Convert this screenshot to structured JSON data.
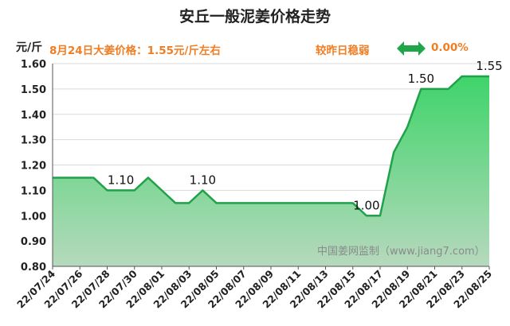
{
  "title": "安丘一般泥姜价格走势",
  "unit": "元/斤",
  "price_note": "8月24日大姜价格：1.55元/斤左右",
  "trend_text": "较昨日稳弱",
  "trend_value": "0.00%",
  "watermark": "中国姜网监制（www.jiang7.com）",
  "colors": {
    "line": "#21a14a",
    "fill_top": "#3fd46a",
    "fill_bottom": "#b6d9bd",
    "accent": "#f07d22",
    "arrow": "#1fa64a"
  },
  "icons": {
    "trend": "left-right-arrow-icon"
  },
  "chart_data": {
    "type": "area",
    "title": "安丘一般泥姜价格走势",
    "ylabel": "元/斤",
    "ylim": [
      0.8,
      1.6
    ],
    "yticks": [
      "0.80",
      "0.90",
      "1.00",
      "1.10",
      "1.20",
      "1.30",
      "1.40",
      "1.50",
      "1.60"
    ],
    "xtick_labels": [
      "22/07/24",
      "22/07/26",
      "22/07/28",
      "22/07/30",
      "22/08/01",
      "22/08/03",
      "22/08/05",
      "22/08/07",
      "22/08/09",
      "22/08/11",
      "22/08/13",
      "22/08/15",
      "22/08/17",
      "22/08/19",
      "22/08/21",
      "22/08/23",
      "22/08/25"
    ],
    "grid": true,
    "series": [
      {
        "values": [
          1.15,
          1.15,
          1.15,
          1.15,
          1.1,
          1.1,
          1.1,
          1.15,
          1.1,
          1.05,
          1.05,
          1.1,
          1.05,
          1.05,
          1.05,
          1.05,
          1.05,
          1.05,
          1.05,
          1.05,
          1.05,
          1.05,
          1.05,
          1.0,
          1.0,
          1.25,
          1.35,
          1.5,
          1.5,
          1.5,
          1.55,
          1.55,
          1.55
        ]
      }
    ],
    "data_labels": [
      {
        "index": 5,
        "text": "1.10"
      },
      {
        "index": 11,
        "text": "1.10"
      },
      {
        "index": 23,
        "text": "1.00"
      },
      {
        "index": 27,
        "text": "1.50"
      },
      {
        "index": 32,
        "text": "1.55"
      }
    ]
  }
}
